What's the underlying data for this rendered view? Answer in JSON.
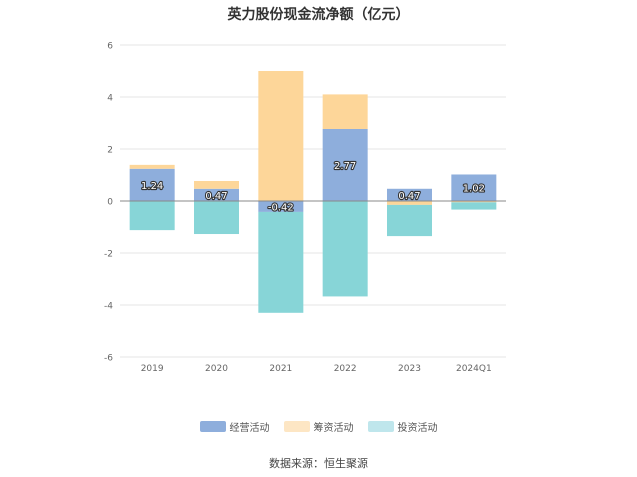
{
  "chart_data": {
    "type": "bar",
    "stacked": true,
    "title": "英力股份现金流净额（亿元）",
    "categories": [
      "2019",
      "2020",
      "2021",
      "2022",
      "2023",
      "2024Q1"
    ],
    "series": [
      {
        "name": "经营活动",
        "color": "#8eaedc",
        "values": [
          1.24,
          0.47,
          -0.42,
          2.77,
          0.47,
          1.02
        ],
        "show_labels": true
      },
      {
        "name": "筹资活动",
        "color": "#fdd699",
        "values": [
          0.15,
          0.3,
          5.0,
          1.33,
          -0.15,
          -0.05
        ],
        "show_labels": false
      },
      {
        "name": "投资活动",
        "color": "#87d5d7",
        "values": [
          -1.12,
          -1.27,
          -3.88,
          -3.67,
          -1.2,
          -0.28
        ],
        "show_labels": false
      }
    ],
    "ylim": [
      -6,
      6
    ],
    "yticks": [
      -6,
      -4,
      -2,
      0,
      2,
      4,
      6
    ],
    "xlabel": "",
    "ylabel": "",
    "grid": true,
    "legend_position": "bottom"
  },
  "legend_colors": {
    "经营活动": "#8eaedc",
    "筹资活动": "#fde6c4",
    "投资活动": "#bfe6ec"
  },
  "source": "数据来源：恒生聚源"
}
